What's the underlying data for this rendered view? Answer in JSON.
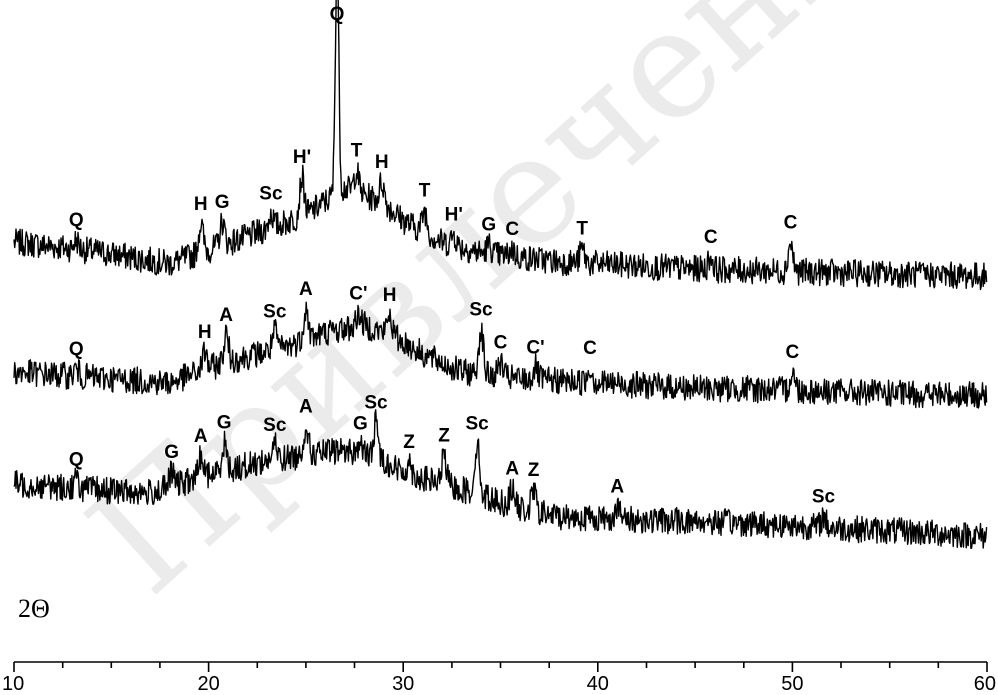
{
  "chart_data": {
    "type": "line",
    "xlabel": "2Θ",
    "xlim": [
      10,
      60
    ],
    "xticks": [
      10,
      20,
      30,
      40,
      50,
      60
    ],
    "watermark": "Привлечения",
    "series": [
      {
        "baseline": [
          [
            10,
            0.0
          ],
          [
            14,
            -0.5
          ],
          [
            18,
            -1.2
          ],
          [
            22,
            0.3
          ],
          [
            25,
            1.5
          ],
          [
            27,
            3.0
          ],
          [
            29,
            2.2
          ],
          [
            30,
            1.2
          ],
          [
            32,
            0.0
          ],
          [
            34,
            -0.6
          ],
          [
            38,
            -1.1
          ],
          [
            45,
            -1.5
          ],
          [
            52,
            -1.7
          ],
          [
            60,
            -1.9
          ]
        ],
        "peaks": [
          {
            "label": "Q",
            "x": 13.2,
            "h": 0.5
          },
          {
            "label": "H",
            "x": 19.6,
            "h": 1.6
          },
          {
            "label": "G",
            "x": 20.7,
            "h": 1.3
          },
          {
            "label": "Sc",
            "x": 23.2,
            "h": 0.8
          },
          {
            "label": "H'",
            "x": 24.8,
            "h": 2.2
          },
          {
            "label": "Q",
            "x": 26.6,
            "h": 13.0
          },
          {
            "label": "T",
            "x": 27.6,
            "h": 1.2
          },
          {
            "label": "H",
            "x": 28.9,
            "h": 1.1
          },
          {
            "label": "T",
            "x": 31.1,
            "h": 1.2
          },
          {
            "label": "H'",
            "x": 32.6,
            "h": 0.6
          },
          {
            "label": "G",
            "x": 34.4,
            "h": 0.5
          },
          {
            "label": "C",
            "x": 35.6,
            "h": 0.4
          },
          {
            "label": "T",
            "x": 39.2,
            "h": 0.8
          },
          {
            "label": "C",
            "x": 45.8,
            "h": 0.7
          },
          {
            "label": "C",
            "x": 49.9,
            "h": 1.6
          }
        ]
      },
      {
        "baseline": [
          [
            10,
            0.0
          ],
          [
            14,
            -0.3
          ],
          [
            18,
            -0.6
          ],
          [
            21,
            0.6
          ],
          [
            24,
            1.4
          ],
          [
            26,
            2.2
          ],
          [
            28,
            2.6
          ],
          [
            29.5,
            2.0
          ],
          [
            31,
            1.0
          ],
          [
            33,
            0.0
          ],
          [
            36,
            -0.4
          ],
          [
            40,
            -0.6
          ],
          [
            45,
            -0.9
          ],
          [
            50,
            -1.0
          ],
          [
            55,
            -1.2
          ],
          [
            60,
            -1.3
          ]
        ],
        "peaks": [
          {
            "label": "Q",
            "x": 13.2,
            "h": 0.4
          },
          {
            "label": "H",
            "x": 19.8,
            "h": 1.0
          },
          {
            "label": "A",
            "x": 20.9,
            "h": 1.5
          },
          {
            "label": "Sc",
            "x": 23.4,
            "h": 1.0
          },
          {
            "label": "A",
            "x": 25.0,
            "h": 1.7
          },
          {
            "label": "C'",
            "x": 27.7,
            "h": 0.7
          },
          {
            "label": "H",
            "x": 29.3,
            "h": 1.1
          },
          {
            "label": "Sc",
            "x": 34.0,
            "h": 2.5
          },
          {
            "label": "C",
            "x": 35.0,
            "h": 0.8
          },
          {
            "label": "C'",
            "x": 36.8,
            "h": 0.7
          },
          {
            "label": "C",
            "x": 39.6,
            "h": 0.8
          },
          {
            "label": "C",
            "x": 50.0,
            "h": 1.0
          }
        ]
      },
      {
        "baseline": [
          [
            10,
            0.0
          ],
          [
            14,
            -0.3
          ],
          [
            17,
            -0.5
          ],
          [
            20,
            0.5
          ],
          [
            23,
            1.3
          ],
          [
            25,
            1.6
          ],
          [
            27,
            1.9
          ],
          [
            29,
            1.3
          ],
          [
            30,
            0.6
          ],
          [
            32,
            0.0
          ],
          [
            34,
            -0.6
          ],
          [
            36,
            -1.4
          ],
          [
            38,
            -1.8
          ],
          [
            42,
            -2.0
          ],
          [
            46,
            -2.1
          ],
          [
            50,
            -2.3
          ],
          [
            55,
            -2.6
          ],
          [
            60,
            -2.9
          ]
        ],
        "peaks": [
          {
            "label": "Q",
            "x": 13.2,
            "h": 0.5
          },
          {
            "label": "G",
            "x": 18.1,
            "h": 0.8
          },
          {
            "label": "A",
            "x": 19.6,
            "h": 1.2
          },
          {
            "label": "G",
            "x": 20.8,
            "h": 1.6
          },
          {
            "label": "Sc",
            "x": 23.4,
            "h": 0.8
          },
          {
            "label": "A",
            "x": 25.0,
            "h": 1.6
          },
          {
            "label": "G",
            "x": 27.8,
            "h": 0.6
          },
          {
            "label": "Sc",
            "x": 28.6,
            "h": 2.0
          },
          {
            "label": "Z",
            "x": 30.3,
            "h": 0.7
          },
          {
            "label": "Z",
            "x": 32.1,
            "h": 1.6
          },
          {
            "label": "Sc",
            "x": 33.8,
            "h": 2.8
          },
          {
            "label": "A",
            "x": 35.6,
            "h": 1.0
          },
          {
            "label": "Z",
            "x": 36.7,
            "h": 1.2
          },
          {
            "label": "A",
            "x": 41.0,
            "h": 0.7
          },
          {
            "label": "Sc",
            "x": 51.6,
            "h": 0.6
          }
        ]
      }
    ]
  }
}
